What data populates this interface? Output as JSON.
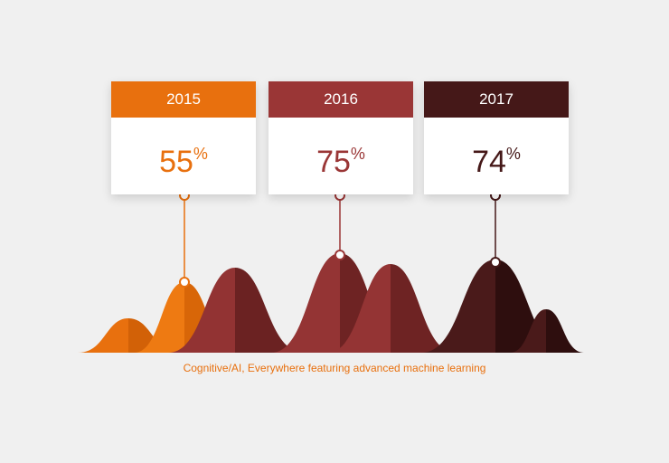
{
  "cards": [
    {
      "year": "2015",
      "value": 55,
      "unit": "%"
    },
    {
      "year": "2016",
      "value": 75,
      "unit": "%"
    },
    {
      "year": "2017",
      "value": 74,
      "unit": "%"
    }
  ],
  "caption": "Cognitive/AI, Everywhere featuring advanced machine learning"
}
